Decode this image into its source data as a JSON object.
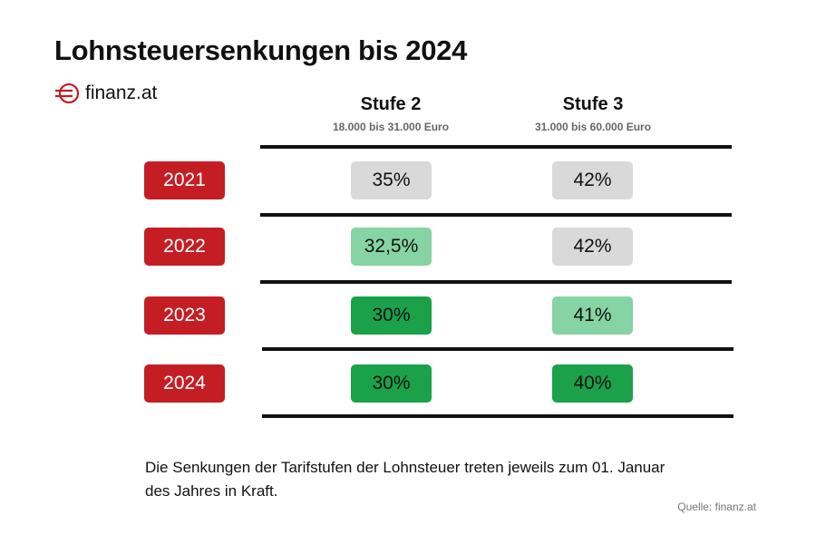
{
  "title": "Lohnsteuersenkungen bis 2024",
  "logo_text": "finanz.at",
  "colors": {
    "gray": "#d9d9d9",
    "light_green": "#86d3a3",
    "dark_green": "#1aa14a",
    "red": "#c41e24"
  },
  "chart_data": {
    "type": "table",
    "title": "Lohnsteuersenkungen bis 2024",
    "columns": [
      {
        "name": "Stufe 2",
        "range": "18.000 bis 31.000 Euro"
      },
      {
        "name": "Stufe 3",
        "range": "31.000 bis 60.000 Euro"
      }
    ],
    "rows": [
      {
        "year": "2021",
        "values": [
          "35%",
          "42%"
        ],
        "shades": [
          "gray",
          "gray"
        ]
      },
      {
        "year": "2022",
        "values": [
          "32,5%",
          "42%"
        ],
        "shades": [
          "light_green",
          "gray"
        ]
      },
      {
        "year": "2023",
        "values": [
          "30%",
          "41%"
        ],
        "shades": [
          "dark_green",
          "light_green"
        ]
      },
      {
        "year": "2024",
        "values": [
          "30%",
          "40%"
        ],
        "shades": [
          "dark_green",
          "dark_green"
        ]
      }
    ]
  },
  "note": "Die Senkungen der Tarifstufen der Lohnsteuer treten jeweils zum 01. Januar des Jahres in Kraft.",
  "source": "Quelle: finanz.at"
}
